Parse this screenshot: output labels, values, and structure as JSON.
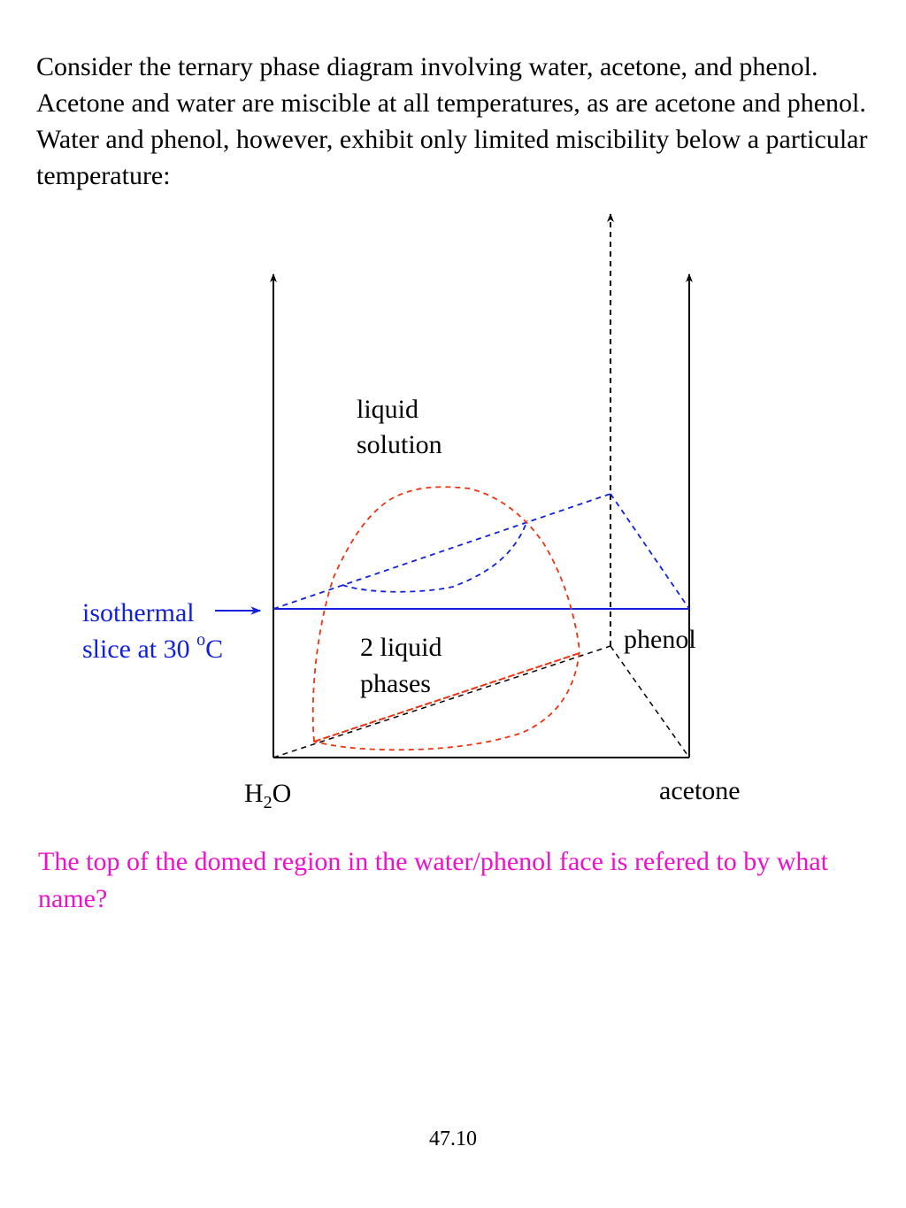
{
  "intro_text": "Consider the ternary phase diagram involving water, acetone, and phenol.  Acetone and water are miscible at all temperatures, as are acetone and phenol.  Water and phenol, however, exhibit only limited miscibility below a particular temperature:",
  "diagram": {
    "region_one_phase_line1": "liquid",
    "region_one_phase_line2": "solution",
    "region_two_phase_line1": "2 liquid",
    "region_two_phase_line2": "phases",
    "label_water_main": "H",
    "label_water_sub": "2",
    "label_water_end": "O",
    "label_acetone": "acetone",
    "label_phenol": "phenol",
    "isothermal_line1": "isothermal",
    "isothermal_line2_prefix": "slice at 30 ",
    "isothermal_degree": "o",
    "isothermal_unit": "C",
    "colors": {
      "axes": "#000000",
      "isothermal": "#1020dd",
      "dome": "#ee3311"
    }
  },
  "question_text": "The top of the domed region in the water/phenol face is refered to by what name?",
  "page_number": "47.10"
}
